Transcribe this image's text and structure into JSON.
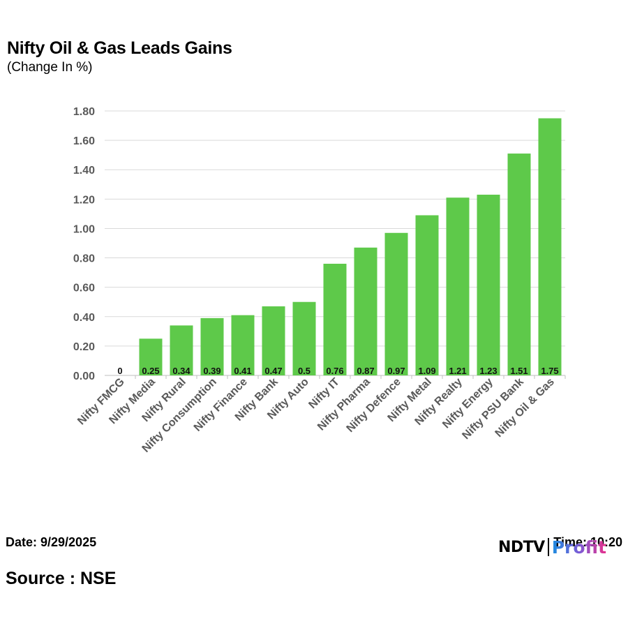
{
  "chart_data": {
    "type": "bar",
    "title": "Nifty Oil & Gas Leads Gains",
    "subtitle": "(Change In %)",
    "categories": [
      "Nifty FMCG",
      "Nifty Media",
      "Nifty Rural",
      "Nifty Consumption",
      "Nifty Finance",
      "Nifty Bank",
      "Nifty Auto",
      "Nifty IT",
      "Nifty Pharma",
      "Nifty Defence",
      "Nifty Metal",
      "Nifty Realty",
      "Nifty Energy",
      "Nifty PSU Bank",
      "Nifty Oil & Gas"
    ],
    "values": [
      0,
      0.25,
      0.34,
      0.39,
      0.41,
      0.47,
      0.5,
      0.76,
      0.87,
      0.97,
      1.09,
      1.21,
      1.23,
      1.51,
      1.75
    ],
    "data_labels": [
      "0",
      "0.25",
      "0.34",
      "0.39",
      "0.41",
      "0.47",
      "0.5",
      "0.76",
      "0.87",
      "0.97",
      "1.09",
      "1.21",
      "1.23",
      "1.51",
      "1.75"
    ],
    "yticks": [
      "0.00",
      "0.20",
      "0.40",
      "0.60",
      "0.80",
      "1.00",
      "1.20",
      "1.40",
      "1.60",
      "1.80"
    ],
    "ylim": [
      0,
      1.8
    ],
    "xlabel": "",
    "ylabel": "",
    "grid": true,
    "bar_color": "#5ec94a"
  },
  "footer": {
    "date": "Date: 9/29/2025",
    "time": "Time: 10:20",
    "source": "Source : NSE"
  },
  "brand": {
    "logo_text": "NDTV Profit"
  }
}
